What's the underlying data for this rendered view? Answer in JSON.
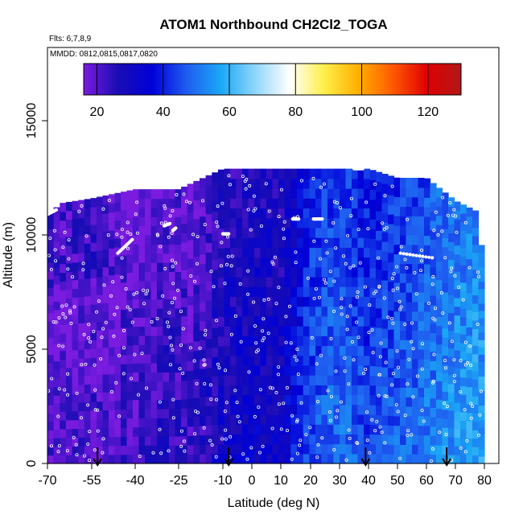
{
  "chart_data": {
    "type": "heatmap",
    "title": "ATOM1 Northbound CH2Cl2_TOGA",
    "subtitle_flights": "Flts: 6,7,8,9",
    "subtitle_dates": "MMDD: 0812,0815,0817,0820",
    "xlabel": "Latitude (deg N)",
    "ylabel": "Altitude (m)",
    "xlim": [
      -70,
      80
    ],
    "ylim": [
      0,
      17500
    ],
    "x_ticks": [
      "-70",
      "-55",
      "-40",
      "-25",
      "-10",
      "0",
      "10",
      "20",
      "30",
      "40",
      "50",
      "60",
      "70",
      "80"
    ],
    "y_ticks": [
      "0",
      "5000",
      "10000",
      "15000"
    ],
    "colorbar": {
      "range": [
        16,
        130
      ],
      "ticks": [
        "20",
        "40",
        "60",
        "80",
        "100",
        "120"
      ],
      "colors": [
        "#7a1be0",
        "#1a0db3",
        "#0000d8",
        "#1f5cf0",
        "#1aa8f5",
        "#8fd6fa",
        "#ffffff",
        "#ffef4a",
        "#ffb000",
        "#ff5a00",
        "#e00000",
        "#b01818"
      ]
    },
    "arrows_latitude": [
      -53,
      -8,
      39,
      67
    ],
    "ceiling_profile": [
      {
        "lat": -70,
        "alt": 10900
      },
      {
        "lat": -65,
        "alt": 11400
      },
      {
        "lat": -55,
        "alt": 11600
      },
      {
        "lat": -40,
        "alt": 12000
      },
      {
        "lat": -25,
        "alt": 12000
      },
      {
        "lat": -10,
        "alt": 12900
      },
      {
        "lat": 10,
        "alt": 12900
      },
      {
        "lat": 30,
        "alt": 12900
      },
      {
        "lat": 40,
        "alt": 12900
      },
      {
        "lat": 50,
        "alt": 12500
      },
      {
        "lat": 60,
        "alt": 12500
      },
      {
        "lat": 70,
        "alt": 11500
      },
      {
        "lat": 78,
        "alt": 11000
      },
      {
        "lat": 80,
        "alt": 8000
      }
    ],
    "concentration_profile": [
      {
        "lat": -70,
        "value": 27
      },
      {
        "lat": -60,
        "value": 27
      },
      {
        "lat": -55,
        "value": 29
      },
      {
        "lat": -50,
        "value": 26
      },
      {
        "lat": -40,
        "value": 22
      },
      {
        "lat": -30,
        "value": 26
      },
      {
        "lat": -20,
        "value": 24
      },
      {
        "lat": -10,
        "value": 31
      },
      {
        "lat": 0,
        "value": 33
      },
      {
        "lat": 10,
        "value": 32
      },
      {
        "lat": 20,
        "value": 46
      },
      {
        "lat": 30,
        "value": 50
      },
      {
        "lat": 40,
        "value": 44
      },
      {
        "lat": 50,
        "value": 48
      },
      {
        "lat": 60,
        "value": 51
      },
      {
        "lat": 70,
        "value": 56
      },
      {
        "lat": 80,
        "value": 58
      }
    ]
  }
}
